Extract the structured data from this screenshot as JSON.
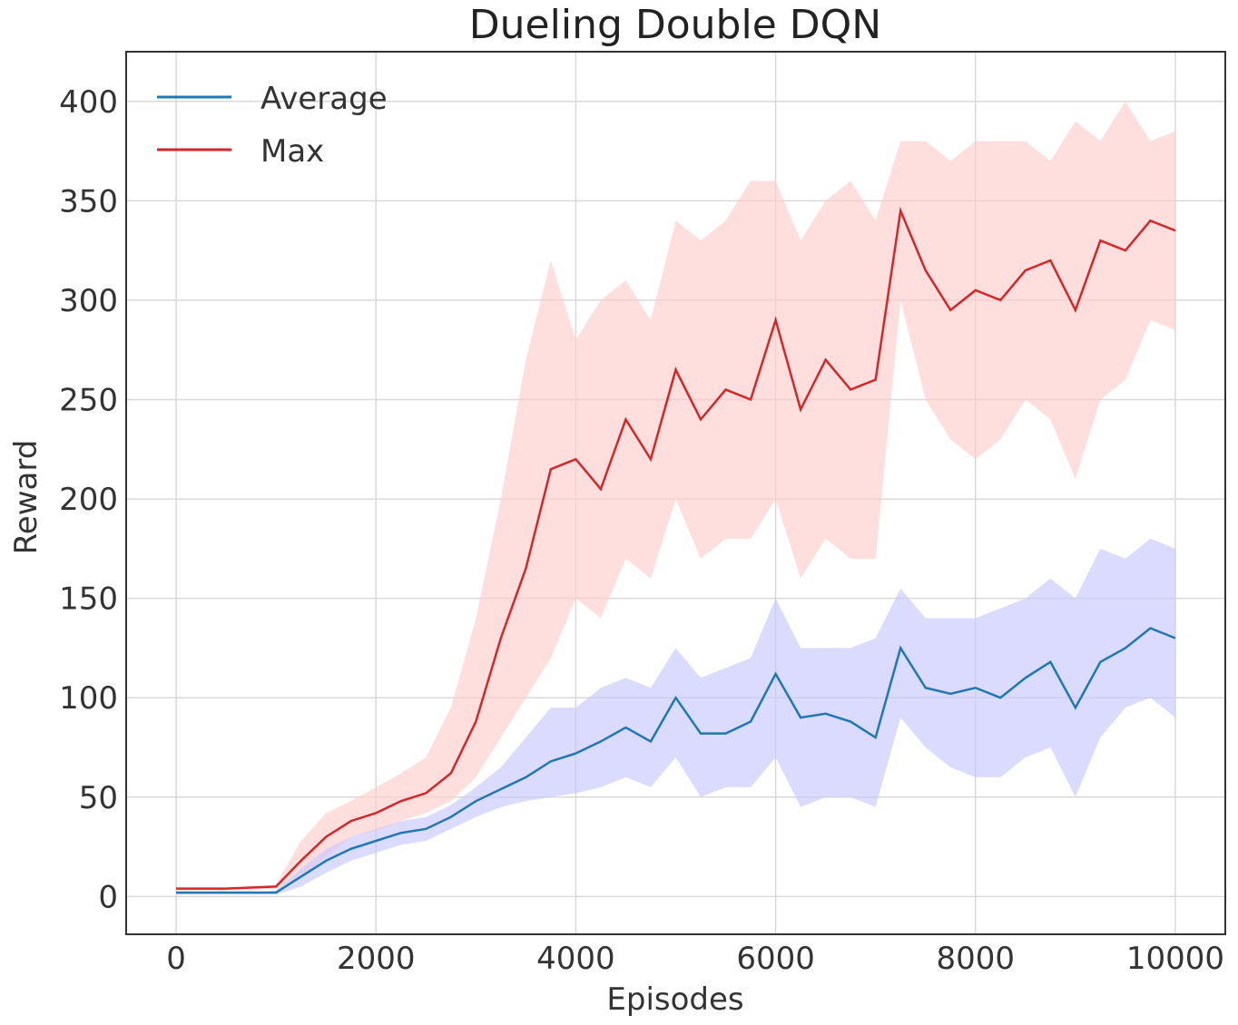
{
  "chart_data": {
    "type": "line",
    "title": "Dueling Double DQN",
    "xlabel": "Episodes",
    "ylabel": "Reward",
    "xlim": [
      -500,
      10500
    ],
    "ylim": [
      -19,
      425
    ],
    "xticks": [
      0,
      2000,
      4000,
      6000,
      8000,
      10000
    ],
    "yticks": [
      0,
      50,
      100,
      150,
      200,
      250,
      300,
      350,
      400
    ],
    "grid": true,
    "legend": "top-left",
    "x": [
      0,
      250,
      500,
      750,
      1000,
      1250,
      1500,
      1750,
      2000,
      2250,
      2500,
      2750,
      3000,
      3250,
      3500,
      3750,
      4000,
      4250,
      4500,
      4750,
      5000,
      5250,
      5500,
      5750,
      6000,
      6250,
      6500,
      6750,
      7000,
      7250,
      7500,
      7750,
      8000,
      8250,
      8500,
      8750,
      9000,
      9250,
      9500,
      9750,
      10000
    ],
    "series": [
      {
        "name": "Average",
        "color": "#1f77b4",
        "band_color": "#c8c8ff",
        "values": [
          2,
          2,
          2,
          2,
          2,
          10,
          18,
          24,
          28,
          32,
          34,
          40,
          48,
          54,
          60,
          68,
          72,
          78,
          85,
          78,
          100,
          82,
          82,
          88,
          112,
          90,
          92,
          88,
          80,
          125,
          105,
          102,
          105,
          100,
          110,
          118,
          95,
          118,
          125,
          135,
          130
        ],
        "upper": [
          2,
          2,
          2,
          2,
          3,
          14,
          24,
          30,
          34,
          38,
          40,
          46,
          55,
          65,
          80,
          95,
          95,
          105,
          110,
          105,
          125,
          110,
          115,
          120,
          150,
          125,
          125,
          125,
          130,
          155,
          140,
          140,
          140,
          145,
          150,
          160,
          150,
          175,
          170,
          180,
          175
        ],
        "lower": [
          1,
          1,
          1,
          1,
          1,
          5,
          12,
          18,
          22,
          26,
          28,
          34,
          40,
          45,
          48,
          50,
          52,
          55,
          60,
          55,
          70,
          50,
          55,
          55,
          70,
          45,
          50,
          50,
          45,
          90,
          75,
          65,
          60,
          60,
          70,
          75,
          50,
          80,
          95,
          100,
          90
        ]
      },
      {
        "name": "Max",
        "color": "#d62728",
        "band_color": "#ffcccc",
        "values": [
          4,
          4,
          4,
          4.5,
          5,
          18,
          30,
          38,
          42,
          48,
          52,
          62,
          88,
          130,
          165,
          215,
          220,
          205,
          240,
          220,
          265,
          240,
          255,
          250,
          290,
          245,
          270,
          255,
          260,
          345,
          315,
          295,
          305,
          300,
          315,
          320,
          295,
          330,
          325,
          340,
          335
        ],
        "upper": [
          4,
          4,
          4,
          5,
          6,
          28,
          42,
          48,
          55,
          62,
          70,
          95,
          140,
          200,
          270,
          320,
          280,
          300,
          310,
          290,
          340,
          330,
          340,
          360,
          360,
          330,
          350,
          360,
          340,
          380,
          380,
          370,
          380,
          380,
          380,
          370,
          390,
          380,
          400,
          380,
          385
        ],
        "lower": [
          3,
          3,
          3,
          3.5,
          4,
          10,
          20,
          30,
          33,
          38,
          42,
          48,
          60,
          80,
          100,
          120,
          150,
          140,
          170,
          160,
          200,
          170,
          180,
          180,
          200,
          160,
          180,
          170,
          170,
          300,
          250,
          230,
          220,
          230,
          250,
          240,
          210,
          250,
          260,
          290,
          285
        ]
      }
    ]
  }
}
